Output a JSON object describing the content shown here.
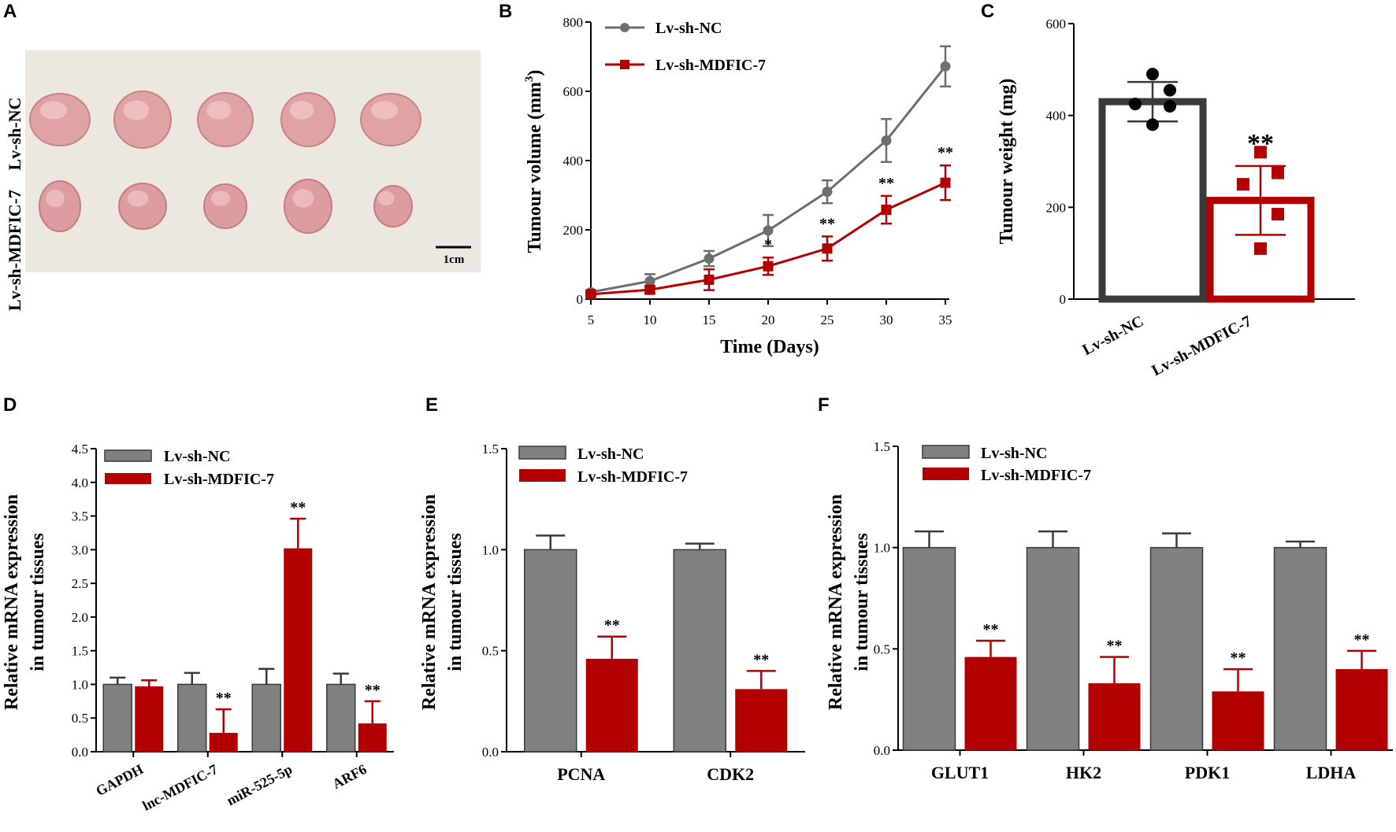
{
  "figure_labels": [
    "A",
    "B",
    "C",
    "D",
    "E",
    "F"
  ],
  "colors": {
    "nc": "#808080",
    "nc_line": "#6e6e6e",
    "md": "#b20000",
    "dark": "#3a3a3a"
  },
  "photo": {
    "row_labels": [
      "Lv-sh-NC",
      "Lv-sh-MDFIC-7"
    ],
    "scale_label": "1cm",
    "tumour_count_per_row": 5
  },
  "chart_data": [
    {
      "id": "B",
      "type": "line",
      "title": "",
      "xlabel": "Time (Days)",
      "ylabel": "Tumour volume (mm3)",
      "ylabel_main": "Tumour volume (mm",
      "ylabel_sup": "3",
      "ylabel_close": ")",
      "x": [
        5,
        10,
        15,
        20,
        25,
        30,
        35
      ],
      "xlim": [
        5,
        35
      ],
      "ylim": [
        0,
        800
      ],
      "yticks": [
        0,
        200,
        400,
        600,
        800
      ],
      "legend": [
        "Lv-sh-NC",
        "Lv-sh-MDFIC-7"
      ],
      "series": [
        {
          "name": "Lv-sh-NC",
          "values": [
            20,
            52,
            117,
            198,
            310,
            458,
            672
          ],
          "errors": [
            5,
            20,
            22,
            45,
            33,
            62,
            58
          ]
        },
        {
          "name": "Lv-sh-MDFIC-7",
          "values": [
            14,
            27,
            56,
            95,
            146,
            258,
            336
          ],
          "errors": [
            4,
            10,
            30,
            25,
            35,
            40,
            50
          ],
          "significance": [
            "",
            "",
            "",
            "*",
            "**",
            "**",
            "**"
          ]
        }
      ]
    },
    {
      "id": "C",
      "type": "bar",
      "title": "",
      "xlabel": "",
      "ylabel": "Tumour weight (mg)",
      "categories": [
        "Lv-sh-NC",
        "Lv-sh-MDFIC-7"
      ],
      "values": [
        430,
        215
      ],
      "errors": [
        43,
        75
      ],
      "points": [
        [
          490,
          455,
          425,
          420,
          380
        ],
        [
          320,
          275,
          250,
          185,
          110
        ]
      ],
      "significance": [
        "",
        "**"
      ],
      "ylim": [
        0,
        600
      ],
      "yticks": [
        0,
        200,
        400,
        600
      ]
    },
    {
      "id": "D",
      "type": "bar",
      "title": "",
      "xlabel": "",
      "ylabel_line1": "Relative mRNA expression",
      "ylabel_line2": "in tumour tissues",
      "categories": [
        "GAPDH",
        "lnc-MDFIC-7",
        "miR-525-5p",
        "ARF6"
      ],
      "legend": [
        "Lv-sh-NC",
        "Lv-sh-MDFIC-7"
      ],
      "ylim": [
        0,
        4.5
      ],
      "yticks": [
        "0.0",
        "0.5",
        "1.0",
        "1.5",
        "2.0",
        "2.5",
        "3.0",
        "3.5",
        "4.0",
        "4.5"
      ],
      "series": [
        {
          "name": "Lv-sh-NC",
          "values": [
            1.0,
            1.0,
            1.0,
            1.0
          ],
          "errors": [
            0.1,
            0.17,
            0.23,
            0.16
          ]
        },
        {
          "name": "Lv-sh-MDFIC-7",
          "values": [
            0.97,
            0.28,
            3.02,
            0.42
          ],
          "errors": [
            0.09,
            0.35,
            0.44,
            0.33
          ],
          "significance": [
            "",
            "**",
            "**",
            "**"
          ]
        }
      ]
    },
    {
      "id": "E",
      "type": "bar",
      "title": "",
      "xlabel": "",
      "ylabel_line1": "Relative mRNA expression",
      "ylabel_line2": "in tumour tissues",
      "categories": [
        "PCNA",
        "CDK2"
      ],
      "legend": [
        "Lv-sh-NC",
        "Lv-sh-MDFIC-7"
      ],
      "ylim": [
        0,
        1.5
      ],
      "yticks": [
        "0.0",
        "0.5",
        "1.0",
        "1.5"
      ],
      "series": [
        {
          "name": "Lv-sh-NC",
          "values": [
            1.0,
            1.0
          ],
          "errors": [
            0.07,
            0.03
          ]
        },
        {
          "name": "Lv-sh-MDFIC-7",
          "values": [
            0.46,
            0.31
          ],
          "errors": [
            0.11,
            0.09
          ],
          "significance": [
            "**",
            "**"
          ]
        }
      ]
    },
    {
      "id": "F",
      "type": "bar",
      "title": "",
      "xlabel": "",
      "ylabel_line1": "Relative mRNA expression",
      "ylabel_line2": "in tumour tissues",
      "categories": [
        "GLUT1",
        "HK2",
        "PDK1",
        "LDHA"
      ],
      "legend": [
        "Lv-sh-NC",
        "Lv-sh-MDFIC-7"
      ],
      "ylim": [
        0,
        1.5
      ],
      "yticks": [
        "0.0",
        "0.5",
        "1.0",
        "1.5"
      ],
      "series": [
        {
          "name": "Lv-sh-NC",
          "values": [
            1.0,
            1.0,
            1.0,
            1.0
          ],
          "errors": [
            0.08,
            0.08,
            0.07,
            0.03
          ]
        },
        {
          "name": "Lv-sh-MDFIC-7",
          "values": [
            0.46,
            0.33,
            0.29,
            0.4
          ],
          "errors": [
            0.08,
            0.13,
            0.11,
            0.09
          ],
          "significance": [
            "**",
            "**",
            "**",
            "**"
          ]
        }
      ]
    }
  ]
}
